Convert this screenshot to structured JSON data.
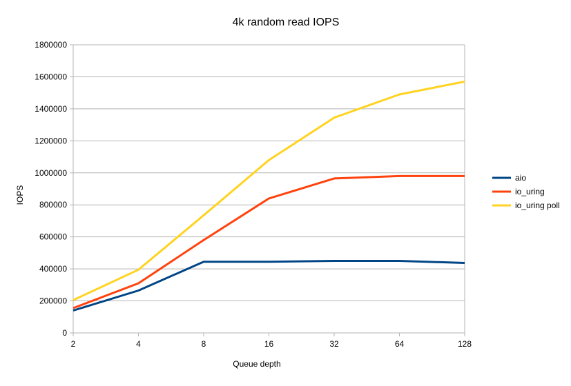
{
  "chart_data": {
    "type": "line",
    "title": "4k random read IOPS",
    "xlabel": "Queue depth",
    "ylabel": "IOPS",
    "categories": [
      "2",
      "4",
      "8",
      "16",
      "32",
      "64",
      "128"
    ],
    "ylim": [
      0,
      1800000
    ],
    "y_ticks": [
      "0",
      "200000",
      "400000",
      "600000",
      "800000",
      "1000000",
      "1200000",
      "1400000",
      "1600000",
      "1800000"
    ],
    "grid": true,
    "legend_position": "right",
    "series": [
      {
        "name": "aio",
        "color": "#004586",
        "values": [
          140000,
          265000,
          445000,
          445000,
          450000,
          450000,
          437000
        ]
      },
      {
        "name": "io_uring",
        "color": "#ff420e",
        "values": [
          155000,
          310000,
          580000,
          840000,
          965000,
          980000,
          980000
        ]
      },
      {
        "name": "io_uring poll",
        "color": "#ffd320",
        "values": [
          205000,
          395000,
          735000,
          1080000,
          1345000,
          1490000,
          1570000
        ]
      }
    ]
  }
}
